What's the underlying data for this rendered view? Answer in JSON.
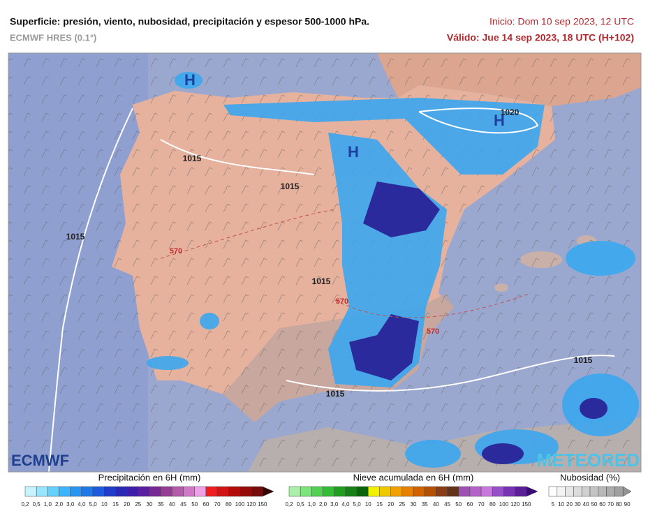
{
  "header": {
    "title": "Superficie: presión, viento, nubosidad, precipitación y espesor 500-1000 hPa.",
    "model": "ECMWF HRES (0.1°)",
    "init": "Inicio: Dom 10 sep 2023, 12 UTC",
    "valid": "Válido: Jue 14 sep 2023, 18 UTC (H+102)"
  },
  "map": {
    "labels": [
      "H",
      "H",
      "H",
      "1015",
      "1015",
      "1015",
      "570",
      "1015",
      "570",
      "570",
      "1015",
      "1015",
      "1020"
    ],
    "logos": [
      "ECMWF",
      "METEORED"
    ]
  },
  "legends": [
    {
      "title": "Precipitación en 6H (mm)",
      "labels": [
        "0,2",
        "0,5",
        "1,0",
        "2,0",
        "3,0",
        "4,0",
        "5,0",
        "10",
        "15",
        "20",
        "25",
        "30",
        "35",
        "40",
        "45",
        "50",
        "60",
        "70",
        "80",
        "100",
        "120",
        "150"
      ],
      "colors": [
        "#c8f4ff",
        "#96e6ff",
        "#64d2ff",
        "#3cb4ff",
        "#2896f0",
        "#1e78e6",
        "#1e5adc",
        "#1e3cc8",
        "#2828b4",
        "#3c1eaa",
        "#5a1ea0",
        "#782896",
        "#963c96",
        "#b45aaa",
        "#d278c8",
        "#f0a0e6",
        "#f01e1e",
        "#d21414",
        "#b40a0a",
        "#960a0a",
        "#780a0a",
        "#3c0000"
      ]
    },
    {
      "title": "Nieve acumulada en 6H (mm)",
      "labels": [
        "0,2",
        "0,5",
        "1,0",
        "2,0",
        "3,0",
        "4,0",
        "5,0",
        "10",
        "15",
        "20",
        "25",
        "30",
        "35",
        "40",
        "45",
        "50",
        "60",
        "70",
        "80",
        "100",
        "120",
        "150"
      ],
      "colors": [
        "#aaf0aa",
        "#78e678",
        "#50d250",
        "#32be32",
        "#1ea01e",
        "#148214",
        "#0a640a",
        "#f0f000",
        "#f0c800",
        "#f0a000",
        "#e68200",
        "#d26400",
        "#b45000",
        "#8c3c14",
        "#643214",
        "#a050b4",
        "#b464c8",
        "#c878dc",
        "#9650c8",
        "#7832b4",
        "#5a1e96",
        "#3c0a78"
      ]
    },
    {
      "title": "Nubosidad (%)",
      "labels": [
        "5",
        "10",
        "20",
        "30",
        "40",
        "50",
        "60",
        "70",
        "80",
        "90"
      ],
      "colors": [
        "#ffffff",
        "#f4f4f4",
        "#e8e8e8",
        "#dcdcdc",
        "#d0d0d0",
        "#c4c4c4",
        "#b8b8b8",
        "#acacac",
        "#a0a0a0",
        "#949494"
      ]
    }
  ]
}
